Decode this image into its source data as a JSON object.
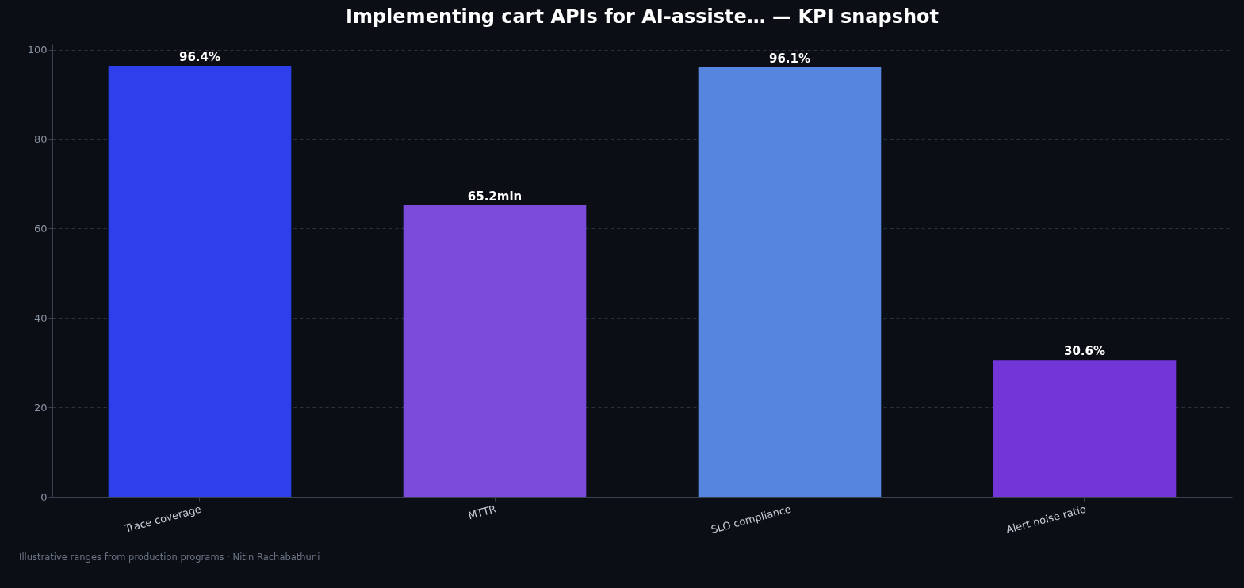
{
  "chart_data": {
    "type": "bar",
    "title": "Implementing cart APIs for AI-assiste… — KPI snapshot",
    "categories": [
      "Trace coverage",
      "MTTR",
      "SLO compliance",
      "Alert noise ratio"
    ],
    "values": [
      96.4,
      65.2,
      96.1,
      30.6
    ],
    "colors": [
      "#2e40ec",
      "#7b4cdc",
      "#5585de",
      "#7235d8"
    ],
    "value_labels": [
      "96.4%",
      "65.2min",
      "96.1%",
      "30.6%"
    ],
    "ylim": [
      0,
      101.2
    ],
    "yticks": [
      0,
      20,
      40,
      60,
      80,
      100
    ],
    "grid": "y",
    "annotations": [
      "Illustrative ranges from production programs · Nitin Rachabathuni"
    ]
  }
}
